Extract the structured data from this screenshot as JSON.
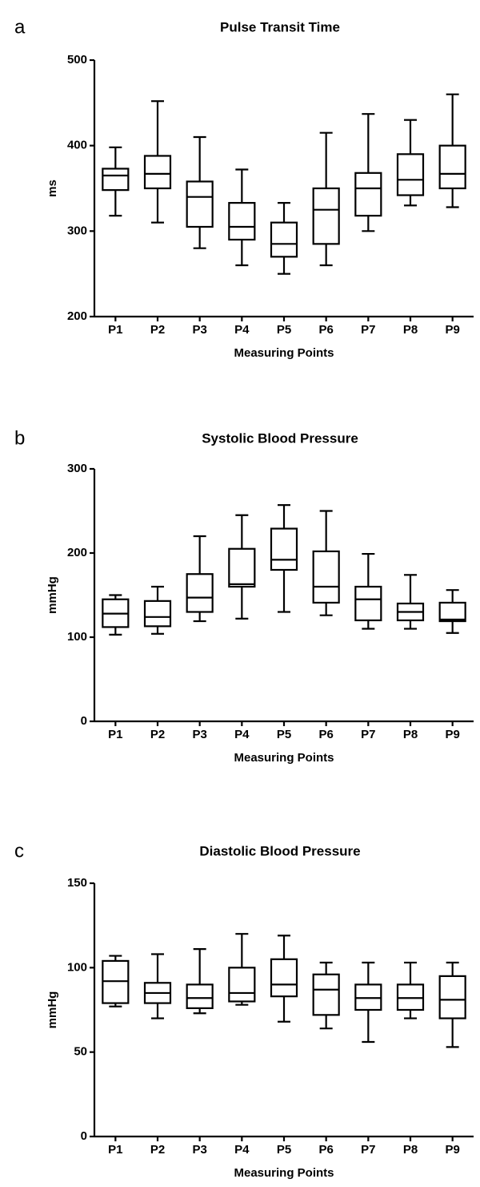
{
  "chart_data": [
    {
      "type": "box",
      "panel": "a",
      "title": "Pulse Transit Time",
      "ylabel": "ms",
      "xlabel": "Measuring Points",
      "categories": [
        "P1",
        "P2",
        "P3",
        "P4",
        "P5",
        "P6",
        "P7",
        "P8",
        "P9"
      ],
      "min": [
        318,
        310,
        280,
        260,
        250,
        260,
        300,
        330,
        328
      ],
      "q1": [
        348,
        350,
        305,
        290,
        270,
        285,
        318,
        342,
        350
      ],
      "median": [
        365,
        367,
        340,
        305,
        285,
        325,
        350,
        360,
        367
      ],
      "q3": [
        373,
        388,
        358,
        333,
        310,
        350,
        368,
        390,
        400
      ],
      "max": [
        398,
        452,
        410,
        372,
        333,
        415,
        437,
        430,
        460
      ],
      "ylim": [
        200,
        500
      ],
      "yticks": [
        200,
        300,
        400,
        500
      ]
    },
    {
      "type": "box",
      "panel": "b",
      "title": "Systolic Blood Pressure",
      "ylabel": "mmHg",
      "xlabel": "Measuring Points",
      "categories": [
        "P1",
        "P2",
        "P3",
        "P4",
        "P5",
        "P6",
        "P7",
        "P8",
        "P9"
      ],
      "min": [
        103,
        104,
        119,
        122,
        130,
        126,
        110,
        110,
        105
      ],
      "q1": [
        112,
        113,
        130,
        160,
        180,
        141,
        120,
        120,
        119
      ],
      "median": [
        128,
        124,
        147,
        163,
        192,
        160,
        145,
        130,
        121
      ],
      "q3": [
        145,
        143,
        175,
        205,
        229,
        202,
        160,
        140,
        141
      ],
      "max": [
        150,
        160,
        220,
        245,
        257,
        250,
        199,
        174,
        156
      ],
      "ylim": [
        0,
        300
      ],
      "yticks": [
        0,
        100,
        200,
        300
      ]
    },
    {
      "type": "box",
      "panel": "c",
      "title": "Diastolic Blood Pressure",
      "ylabel": "mmHg",
      "xlabel": "Measuring Points",
      "categories": [
        "P1",
        "P2",
        "P3",
        "P4",
        "P5",
        "P6",
        "P7",
        "P8",
        "P9"
      ],
      "min": [
        77,
        70,
        73,
        78,
        68,
        64,
        56,
        70,
        53
      ],
      "q1": [
        79,
        79,
        76,
        80,
        83,
        72,
        75,
        75,
        70
      ],
      "median": [
        92,
        85,
        82,
        85,
        90,
        87,
        82,
        82,
        81
      ],
      "q3": [
        104,
        91,
        90,
        100,
        105,
        96,
        90,
        90,
        95
      ],
      "max": [
        107,
        108,
        111,
        120,
        119,
        103,
        103,
        103,
        103
      ],
      "ylim": [
        0,
        150
      ],
      "yticks": [
        0,
        50,
        100,
        150
      ]
    }
  ]
}
